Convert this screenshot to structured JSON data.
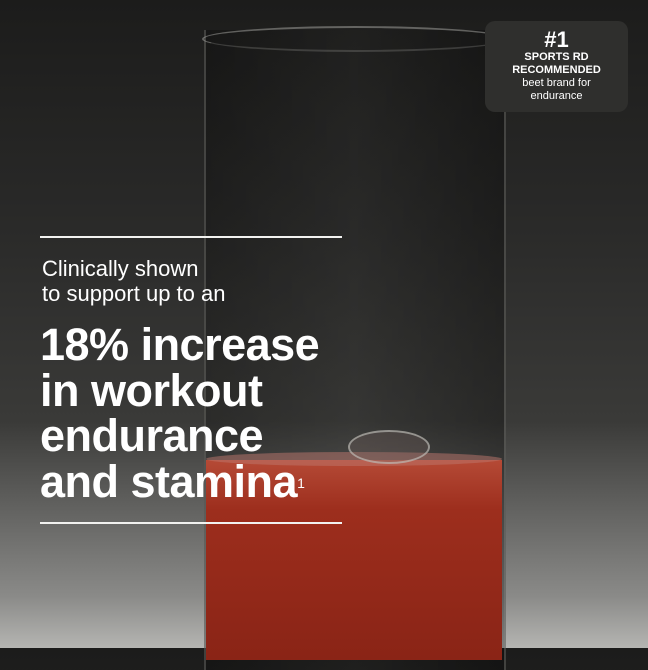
{
  "badge": {
    "rank": "#1",
    "line1": "SPORTS RD",
    "line2": "RECOMMENDED",
    "line3": "beet brand for",
    "line4": "endurance"
  },
  "subhead": {
    "line1": "Clinically shown",
    "line2": "to support up to an"
  },
  "headline": {
    "line1": "18% increase",
    "line2": "in workout",
    "line3": "endurance",
    "line4": "and stamina",
    "footnote": "1"
  },
  "colors": {
    "liquid": "#9d2e1d",
    "text": "#ffffff",
    "badge_bg": "#2f2f2d"
  }
}
